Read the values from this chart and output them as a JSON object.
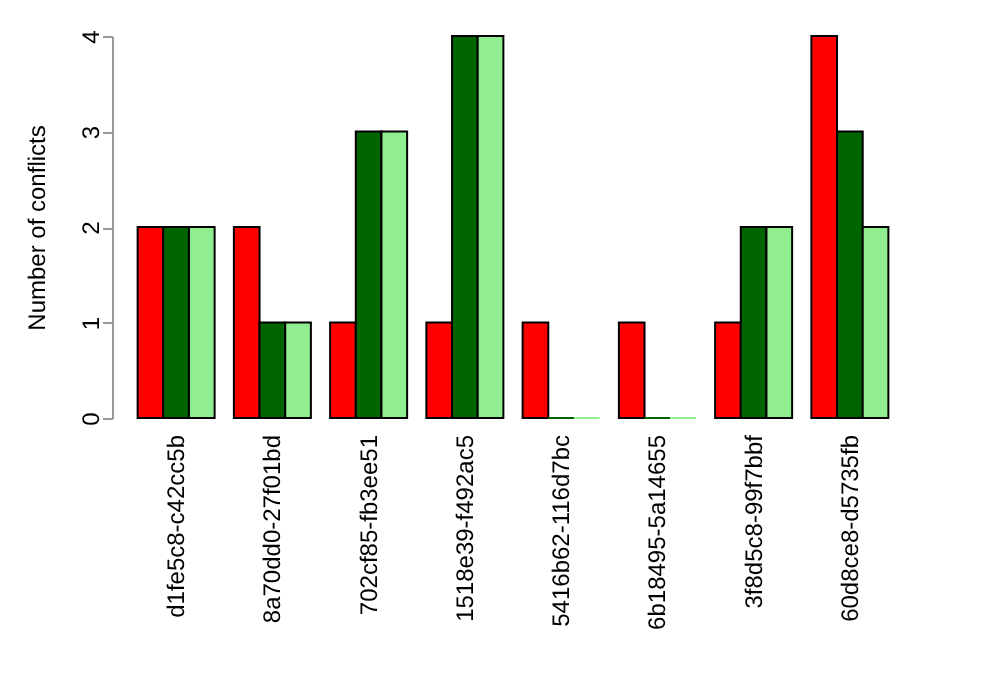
{
  "chart_data": {
    "type": "bar",
    "ylabel": "Number of conflicts",
    "categories": [
      "d1fe5c8-c42cc5b",
      "8a70dd0-27f01bd",
      "702cf85-fb3ee51",
      "1518e39-f492ac5",
      "5416b62-116d7bc",
      "6b18495-5a14655",
      "3f8d5c8-99f7bbf",
      "60d8ce8-d5735fb"
    ],
    "series": [
      {
        "color": "#ff0000",
        "values": [
          2,
          2,
          1,
          1,
          1,
          1,
          1,
          4
        ]
      },
      {
        "color": "#006400",
        "values": [
          2,
          1,
          3,
          4,
          0,
          0,
          2,
          3
        ]
      },
      {
        "color": "#90ee90",
        "values": [
          2,
          1,
          3,
          4,
          0,
          0,
          2,
          2
        ]
      }
    ],
    "ylim": [
      0,
      4
    ],
    "yticks": [
      0,
      1,
      2,
      3,
      4
    ],
    "grid": false,
    "legend": false
  }
}
